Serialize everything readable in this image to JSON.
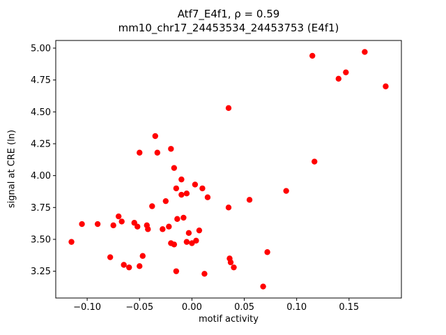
{
  "chart_data": {
    "type": "scatter",
    "title_line1": "Atf7_E4f1, ρ = 0.59",
    "title_line2": "mm10_chr17_24453534_24453753 (E4f1)",
    "xlabel": "motif activity",
    "ylabel": "signal at CRE (ln)",
    "xlim": [
      -0.13,
      0.2
    ],
    "ylim": [
      3.04,
      5.06
    ],
    "xticks": [
      -0.1,
      -0.05,
      0.0,
      0.05,
      0.1,
      0.15
    ],
    "yticks": [
      3.25,
      3.5,
      3.75,
      4.0,
      4.25,
      4.5,
      4.75,
      5.0
    ],
    "marker_color": "#ff0000",
    "grid": false,
    "legend": "none",
    "points": [
      [
        -0.115,
        3.48
      ],
      [
        -0.105,
        3.62
      ],
      [
        -0.09,
        3.62
      ],
      [
        -0.078,
        3.36
      ],
      [
        -0.075,
        3.61
      ],
      [
        -0.07,
        3.68
      ],
      [
        -0.067,
        3.64
      ],
      [
        -0.065,
        3.3
      ],
      [
        -0.06,
        3.28
      ],
      [
        -0.055,
        3.63
      ],
      [
        -0.052,
        3.6
      ],
      [
        -0.05,
        4.18
      ],
      [
        -0.05,
        3.29
      ],
      [
        -0.047,
        3.37
      ],
      [
        -0.043,
        3.61
      ],
      [
        -0.042,
        3.58
      ],
      [
        -0.038,
        3.76
      ],
      [
        -0.035,
        4.31
      ],
      [
        -0.033,
        4.18
      ],
      [
        -0.028,
        3.58
      ],
      [
        -0.025,
        3.8
      ],
      [
        -0.022,
        3.6
      ],
      [
        -0.02,
        4.21
      ],
      [
        -0.02,
        3.47
      ],
      [
        -0.017,
        3.46
      ],
      [
        -0.017,
        4.06
      ],
      [
        -0.015,
        3.9
      ],
      [
        -0.014,
        3.66
      ],
      [
        -0.015,
        3.25
      ],
      [
        -0.01,
        3.97
      ],
      [
        -0.01,
        3.85
      ],
      [
        -0.008,
        3.67
      ],
      [
        -0.005,
        3.86
      ],
      [
        -0.005,
        3.48
      ],
      [
        -0.003,
        3.55
      ],
      [
        0.0,
        3.47
      ],
      [
        0.003,
        3.93
      ],
      [
        0.004,
        3.49
      ],
      [
        0.007,
        3.57
      ],
      [
        0.01,
        3.9
      ],
      [
        0.012,
        3.23
      ],
      [
        0.015,
        3.83
      ],
      [
        0.035,
        4.53
      ],
      [
        0.035,
        3.75
      ],
      [
        0.036,
        3.35
      ],
      [
        0.037,
        3.32
      ],
      [
        0.04,
        3.28
      ],
      [
        0.055,
        3.81
      ],
      [
        0.068,
        3.13
      ],
      [
        0.072,
        3.4
      ],
      [
        0.09,
        3.88
      ],
      [
        0.115,
        4.94
      ],
      [
        0.117,
        4.11
      ],
      [
        0.14,
        4.76
      ],
      [
        0.147,
        4.81
      ],
      [
        0.165,
        4.97
      ],
      [
        0.185,
        4.7
      ]
    ]
  }
}
